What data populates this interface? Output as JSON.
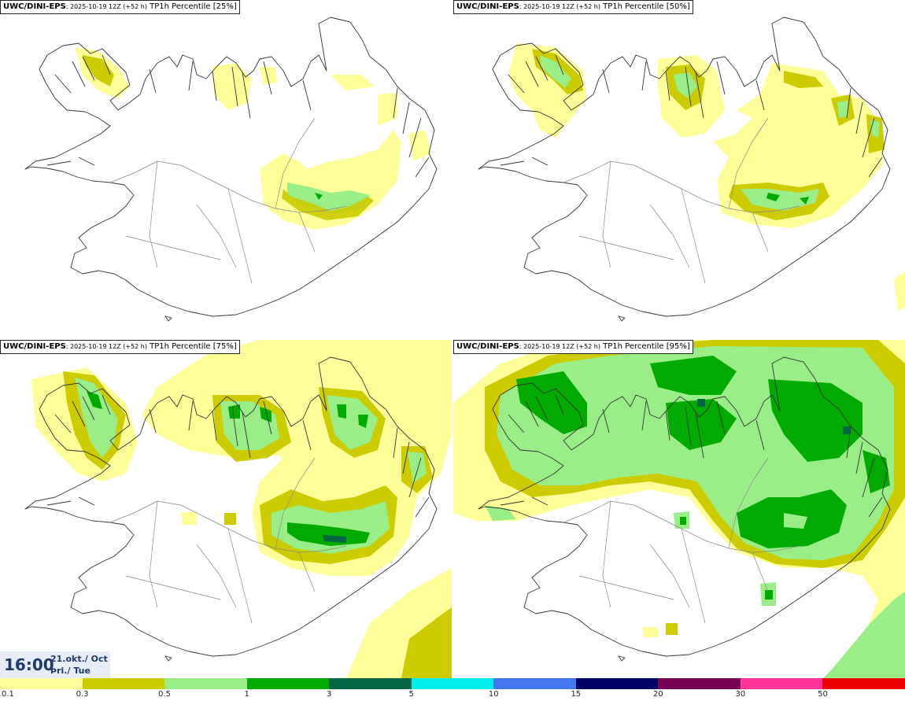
{
  "panels": [
    {
      "model": "UWC/DINI-EPS",
      "run": ": 2025-10-19 12Z (+52 h)",
      "field": " TP1h Percentile [25%]"
    },
    {
      "model": "UWC/DINI-EPS",
      "run": ": 2025-10-19 12Z (+52 h)",
      "field": " TP1h Percentile [50%]"
    },
    {
      "model": "UWC/DINI-EPS",
      "run": ": 2025-10-19 12Z (+52 h)",
      "field": " TP1h Percentile [75%]"
    },
    {
      "model": "UWC/DINI-EPS",
      "run": ": 2025-10-19 12Z (+52 h)",
      "field": " TP1h Percentile [95%]"
    }
  ],
  "valid_time": {
    "time": "16:00",
    "date_line1": "21.okt./ Oct",
    "date_line2": "Þri./ Tue"
  },
  "colorbar": {
    "colors": [
      "#ffff99",
      "#cccc00",
      "#99ee88",
      "#00aa00",
      "#006644",
      "#00eeee",
      "#4477ee",
      "#000066",
      "#770055",
      "#ff3399",
      "#ee0000"
    ],
    "labels": [
      "0.1",
      "0.3",
      "0.5",
      "1",
      "3",
      "5",
      "10",
      "15",
      "20",
      "30",
      "50"
    ]
  },
  "colors": {
    "c01": "#ffff99",
    "c03": "#cccc00",
    "c05": "#99ee88",
    "c1": "#00aa00",
    "c3": "#006644",
    "coast": "#333333",
    "road": "#888888"
  }
}
